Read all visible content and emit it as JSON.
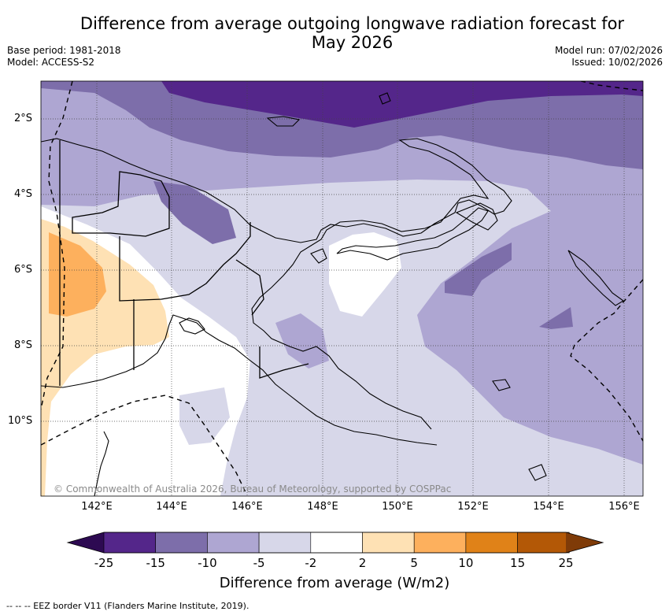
{
  "title_line1": "Difference from average outgoing longwave radiation forecast for",
  "title_line2": "May 2026",
  "base_period": "Base period: 1981-2018",
  "model": "Model: ACCESS-S2",
  "model_run": "Model run: 07/02/2026",
  "issued": "Issued: 10/02/2026",
  "lat_labels": [
    "2°S",
    "4°S",
    "6°S",
    "8°S",
    "10°S"
  ],
  "lon_labels": [
    "142°E",
    "144°E",
    "146°E",
    "148°E",
    "150°E",
    "152°E",
    "154°E",
    "156°E"
  ],
  "copyright": "© Commonwealth of Australia 2026, Bureau of Meteorology, supported by COSPPac",
  "colorbar": {
    "ticks": [
      "-25",
      "-15",
      "-10",
      "-5",
      "-2",
      "2",
      "5",
      "10",
      "15",
      "25"
    ],
    "colors": [
      "#2d0a52",
      "#54268a",
      "#7d6eaa",
      "#aea6d2",
      "#d7d7e9",
      "#ffffff",
      "#fee1b4",
      "#fdb05d",
      "#e08218",
      "#b35806",
      "#7f3b08"
    ],
    "label": "Difference from average (W/m2)"
  },
  "legend_text": "--  --  -- EEZ border V11 (Flanders Marine Institute, 2019)."
}
